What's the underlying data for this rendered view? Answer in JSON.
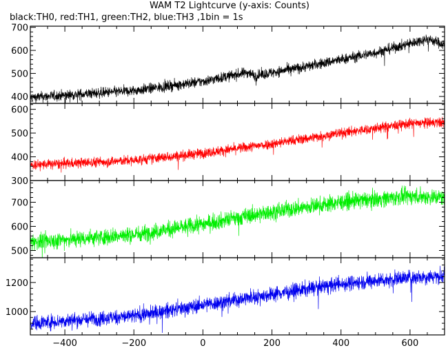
{
  "chart_data": {
    "type": "line",
    "title": "WAM T2 Lightcurve (y-axis: Counts)",
    "subtitle": "black:TH0, red:TH1, green:TH2, blue:TH3 ,1bin = 1s",
    "xlabel": "",
    "xlim": [
      -500,
      700
    ],
    "xticks": [
      -400,
      -200,
      0,
      200,
      400,
      600
    ],
    "grid": false,
    "panels": [
      {
        "series": "TH0",
        "color": "#000000",
        "ylim": [
          370,
          705
        ],
        "yticks": [
          400,
          500,
          600,
          700
        ],
        "trend": {
          "x": [
            -500,
            -200,
            0,
            130,
            150,
            300,
            500,
            650,
            700
          ],
          "y": [
            395,
            425,
            465,
            505,
            490,
            530,
            590,
            650,
            625
          ]
        },
        "noise": 16
      },
      {
        "series": "TH1",
        "color": "#ff0000",
        "ylim": [
          300,
          625
        ],
        "yticks": [
          300,
          400,
          500,
          600
        ],
        "trend": {
          "x": [
            -500,
            -200,
            0,
            200,
            400,
            600,
            700
          ],
          "y": [
            365,
            385,
            415,
            455,
            500,
            540,
            545
          ]
        },
        "noise": 15
      },
      {
        "series": "TH2",
        "color": "#00ee00",
        "ylim": [
          470,
          790
        ],
        "yticks": [
          500,
          600,
          700
        ],
        "trend": {
          "x": [
            -500,
            -200,
            0,
            200,
            400,
            600,
            700
          ],
          "y": [
            535,
            565,
            610,
            660,
            700,
            725,
            720
          ]
        },
        "noise": 24
      },
      {
        "series": "TH3",
        "color": "#0000ee",
        "ylim": [
          840,
          1370
        ],
        "yticks": [
          1000,
          1200
        ],
        "trend": {
          "x": [
            -500,
            -200,
            0,
            200,
            400,
            600,
            700
          ],
          "y": [
            920,
            970,
            1045,
            1120,
            1190,
            1235,
            1245
          ]
        },
        "noise": 36
      }
    ]
  }
}
